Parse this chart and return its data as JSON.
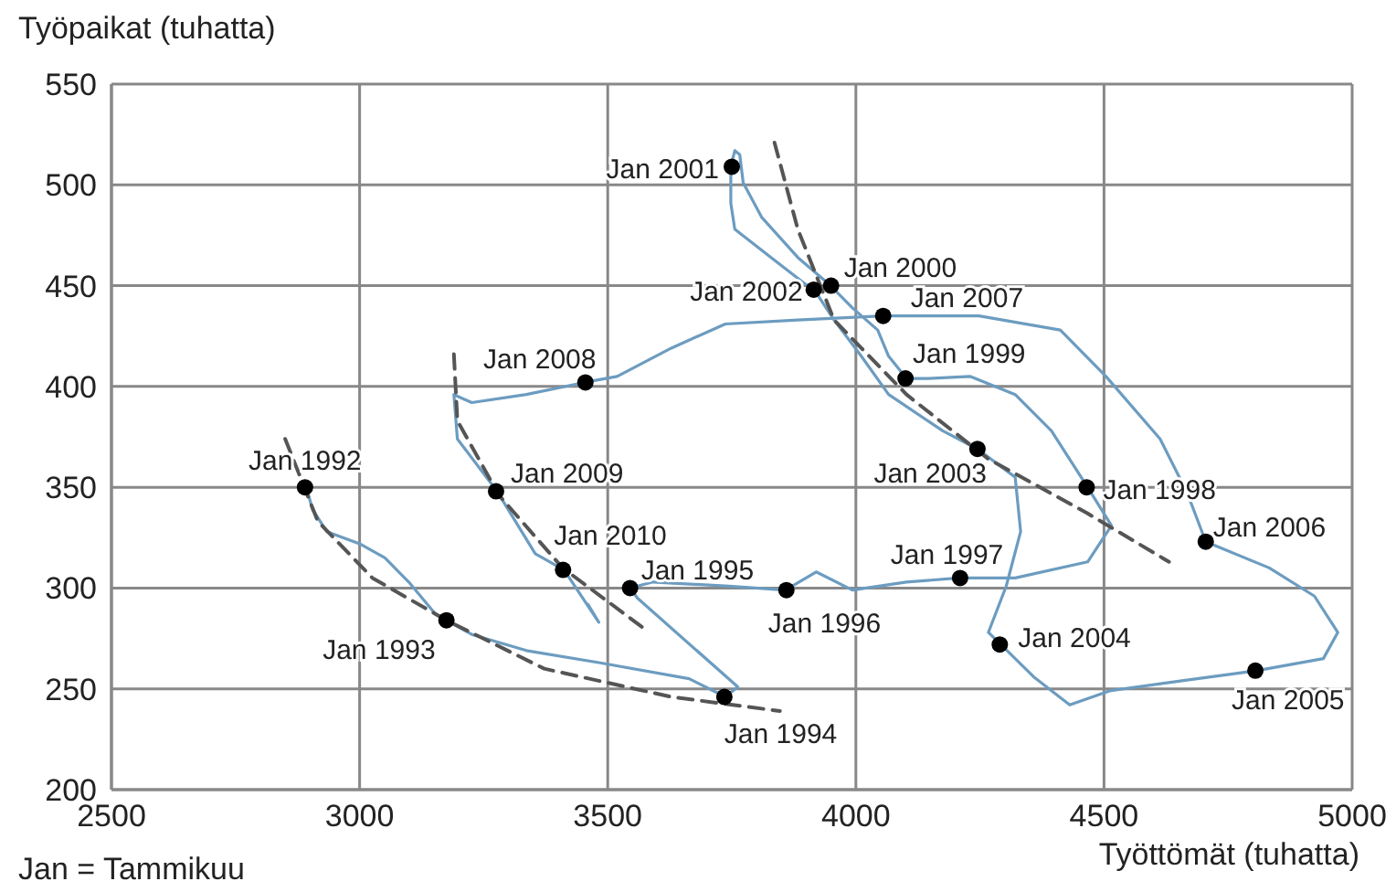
{
  "chart_data": {
    "type": "line",
    "xlabel": "Työttömät (tuhatta)",
    "ylabel": "Työpaikat (tuhatta)",
    "xlim": [
      2500,
      5000
    ],
    "xticks": [
      2500,
      3000,
      3500,
      4000,
      4500,
      5000
    ],
    "ylim": [
      200,
      550
    ],
    "yticks": [
      200,
      250,
      300,
      350,
      400,
      450,
      500,
      550
    ],
    "grid": true,
    "legend": false,
    "series": [
      {
        "color": "#6c9cc0",
        "line_style": "solid",
        "x": [
          2894,
          2905,
          2934,
          3000,
          3051,
          3099,
          3153,
          3175,
          3226,
          3336,
          3482,
          3664,
          3737,
          3762,
          3560,
          3545,
          3591,
          3737,
          3858,
          3920,
          3993,
          4102,
          4208,
          4321,
          4467,
          4515,
          4467,
          4394,
          4321,
          4230,
          4146,
          4102,
          4066,
          4044,
          3993,
          3949,
          3883,
          3810,
          3773,
          3766,
          3756,
          3748,
          3748,
          3756,
          3829,
          3902,
          3916,
          3956,
          4011,
          4066,
          4175,
          4245,
          4321,
          4332,
          4303,
          4267,
          4292,
          4358,
          4431,
          4511,
          4657,
          4807,
          4942,
          4971,
          4924,
          4833,
          4705,
          4668,
          4613,
          4504,
          4412,
          4248,
          4055,
          3883,
          3737,
          3628,
          3519,
          3453,
          3336,
          3226,
          3190,
          3197,
          3277,
          3354,
          3412,
          3482,
          3460
        ],
        "values": [
          349,
          339,
          328,
          322,
          315,
          303,
          287,
          284,
          277,
          269,
          263,
          255,
          246,
          251,
          295,
          300,
          303,
          301,
          299,
          308,
          299,
          303,
          305,
          305,
          313,
          331,
          350,
          378,
          396,
          405,
          404,
          404,
          415,
          428,
          439,
          450,
          464,
          484,
          501,
          515,
          517,
          509,
          491,
          478,
          464,
          450,
          448,
          433,
          415,
          396,
          378,
          369,
          355,
          328,
          301,
          278,
          272,
          256,
          242,
          249,
          254,
          259,
          265,
          278,
          296,
          310,
          323,
          347,
          374,
          405,
          428,
          435,
          435,
          433,
          431,
          419,
          405,
          402,
          396,
          392,
          396,
          374,
          348,
          317,
          309,
          283,
          292
        ]
      },
      {
        "type": "line",
        "color": "#555555",
        "line_style": "dashed",
        "x": [
          2850,
          2916,
          3026,
          3175,
          3372,
          3628,
          3847
        ],
        "values": [
          374,
          333,
          305,
          284,
          260,
          246,
          239
        ]
      },
      {
        "type": "line",
        "color": "#555555",
        "line_style": "dashed",
        "x": [
          3190,
          3197,
          3281,
          3409,
          3573
        ],
        "values": [
          416,
          383,
          346,
          310,
          280
        ]
      },
      {
        "type": "line",
        "color": "#555555",
        "line_style": "dashed",
        "x": [
          3836,
          3883,
          3956,
          4102,
          4267,
          4467,
          4631
        ],
        "values": [
          521,
          478,
          433,
          396,
          364,
          337,
          313
        ]
      },
      {
        "type": "scatter",
        "color": "#000000",
        "marker": "circle",
        "x": [
          2890,
          3175,
          3735,
          3545,
          3860,
          4210,
          4465,
          4100,
          3950,
          3750,
          3915,
          4245,
          4290,
          4805,
          4705,
          4055,
          3455,
          3275,
          3410
        ],
        "values": [
          350,
          284,
          246,
          300,
          299,
          305,
          350,
          404,
          450,
          509,
          448,
          369,
          272,
          259,
          323,
          435,
          402,
          348,
          309
        ]
      }
    ],
    "annotations": [
      {
        "text": "Jan 1992",
        "x": 2890,
        "y": 350
      },
      {
        "text": "Jan 1993",
        "x": 3175,
        "y": 284
      },
      {
        "text": "Jan 1994",
        "x": 3735,
        "y": 246
      },
      {
        "text": "Jan 1995",
        "x": 3545,
        "y": 300
      },
      {
        "text": "Jan 1996",
        "x": 3860,
        "y": 299
      },
      {
        "text": "Jan 1997",
        "x": 4210,
        "y": 305
      },
      {
        "text": "Jan 1998",
        "x": 4465,
        "y": 350
      },
      {
        "text": "Jan 1999",
        "x": 4100,
        "y": 404
      },
      {
        "text": "Jan 2000",
        "x": 3950,
        "y": 450
      },
      {
        "text": "Jan 2001",
        "x": 3750,
        "y": 509
      },
      {
        "text": "Jan 2002",
        "x": 3915,
        "y": 448
      },
      {
        "text": "Jan 2003",
        "x": 4245,
        "y": 369
      },
      {
        "text": "Jan 2004",
        "x": 4290,
        "y": 272
      },
      {
        "text": "Jan 2005",
        "x": 4805,
        "y": 259
      },
      {
        "text": "Jan 2006",
        "x": 4705,
        "y": 323
      },
      {
        "text": "Jan 2007",
        "x": 4055,
        "y": 435
      },
      {
        "text": "Jan 2008",
        "x": 3455,
        "y": 402
      },
      {
        "text": "Jan 2009",
        "x": 3275,
        "y": 348
      },
      {
        "text": "Jan 2010",
        "x": 3410,
        "y": 309
      },
      "Jan = Tammikuu"
    ]
  }
}
